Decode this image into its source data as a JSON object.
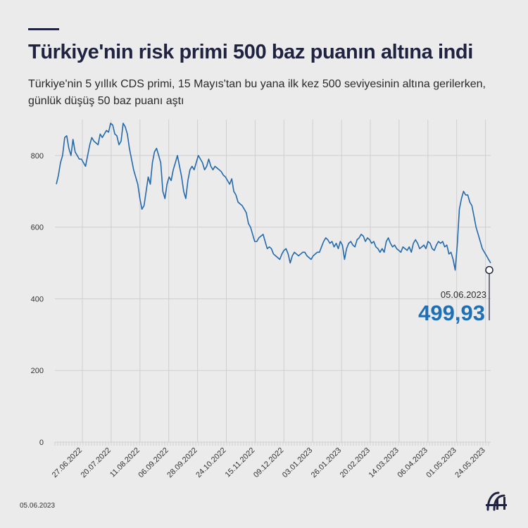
{
  "header": {
    "title": "Türkiye'nin risk primi 500 baz puanın altına indi",
    "subtitle": "Türkiye'nin 5 yıllık CDS primi, 15 Mayıs'tan bu yana ilk kez 500 seviyesinin altına gerilerken, günlük düşüş 50 baz puanı aştı"
  },
  "footer": {
    "date": "05.06.2023"
  },
  "colors": {
    "line": "#2369ad",
    "highlight": "#1f6fb5",
    "text": "#1f2340",
    "grid": "#cfcfcf"
  },
  "chart_data": {
    "type": "line",
    "title": "Türkiye'nin risk primi 500 baz puanın altına indi",
    "xlabel": "",
    "ylabel": "",
    "ylim": [
      0,
      900
    ],
    "y_ticks": [
      0,
      200,
      400,
      600,
      800
    ],
    "grid": true,
    "x_tick_labels": [
      "27.06.2022",
      "20.07.2022",
      "11.08.2022",
      "06.09.2022",
      "28.09.2022",
      "24.10.2022",
      "15.11.2022",
      "09.12.2022",
      "03.01.2023",
      "26.01.2023",
      "20.02.2023",
      "14.03.2023",
      "06.04.2023",
      "01.05.2023",
      "24.05.2023"
    ],
    "annotation": {
      "date": "05.06.2023",
      "value_label": "499,93",
      "value": 499.93
    },
    "series": [
      {
        "values": [
          720,
          745,
          780,
          800,
          850,
          855,
          820,
          800,
          845,
          810,
          800,
          790,
          790,
          780,
          770,
          800,
          830,
          850,
          840,
          835,
          830,
          860,
          850,
          860,
          870,
          865,
          890,
          885,
          860,
          855,
          830,
          840,
          890,
          880,
          860,
          820,
          790,
          760,
          740,
          720,
          680,
          650,
          660,
          700,
          740,
          720,
          780,
          810,
          820,
          800,
          780,
          700,
          680,
          720,
          740,
          730,
          760,
          780,
          800,
          770,
          740,
          700,
          680,
          730,
          760,
          770,
          760,
          780,
          800,
          790,
          780,
          760,
          770,
          790,
          770,
          760,
          770,
          765,
          760,
          755,
          745,
          740,
          730,
          720,
          735,
          700,
          690,
          670,
          665,
          660,
          650,
          640,
          610,
          600,
          580,
          560,
          560,
          570,
          575,
          580,
          560,
          540,
          545,
          540,
          525,
          520,
          515,
          510,
          525,
          535,
          540,
          525,
          500,
          520,
          530,
          525,
          520,
          525,
          530,
          530,
          520,
          515,
          510,
          520,
          525,
          530,
          530,
          545,
          560,
          570,
          565,
          555,
          560,
          545,
          555,
          540,
          560,
          550,
          510,
          540,
          555,
          560,
          550,
          545,
          565,
          570,
          580,
          575,
          560,
          570,
          565,
          555,
          560,
          545,
          540,
          530,
          540,
          530,
          560,
          570,
          555,
          545,
          550,
          540,
          535,
          530,
          545,
          540,
          535,
          545,
          530,
          555,
          565,
          555,
          540,
          545,
          550,
          540,
          560,
          555,
          540,
          535,
          550,
          560,
          555,
          560,
          545,
          550,
          525,
          530,
          510,
          480,
          550,
          650,
          680,
          700,
          690,
          690,
          670,
          660,
          630,
          600,
          580,
          560,
          540,
          530,
          520,
          510,
          499.93
        ]
      }
    ]
  }
}
